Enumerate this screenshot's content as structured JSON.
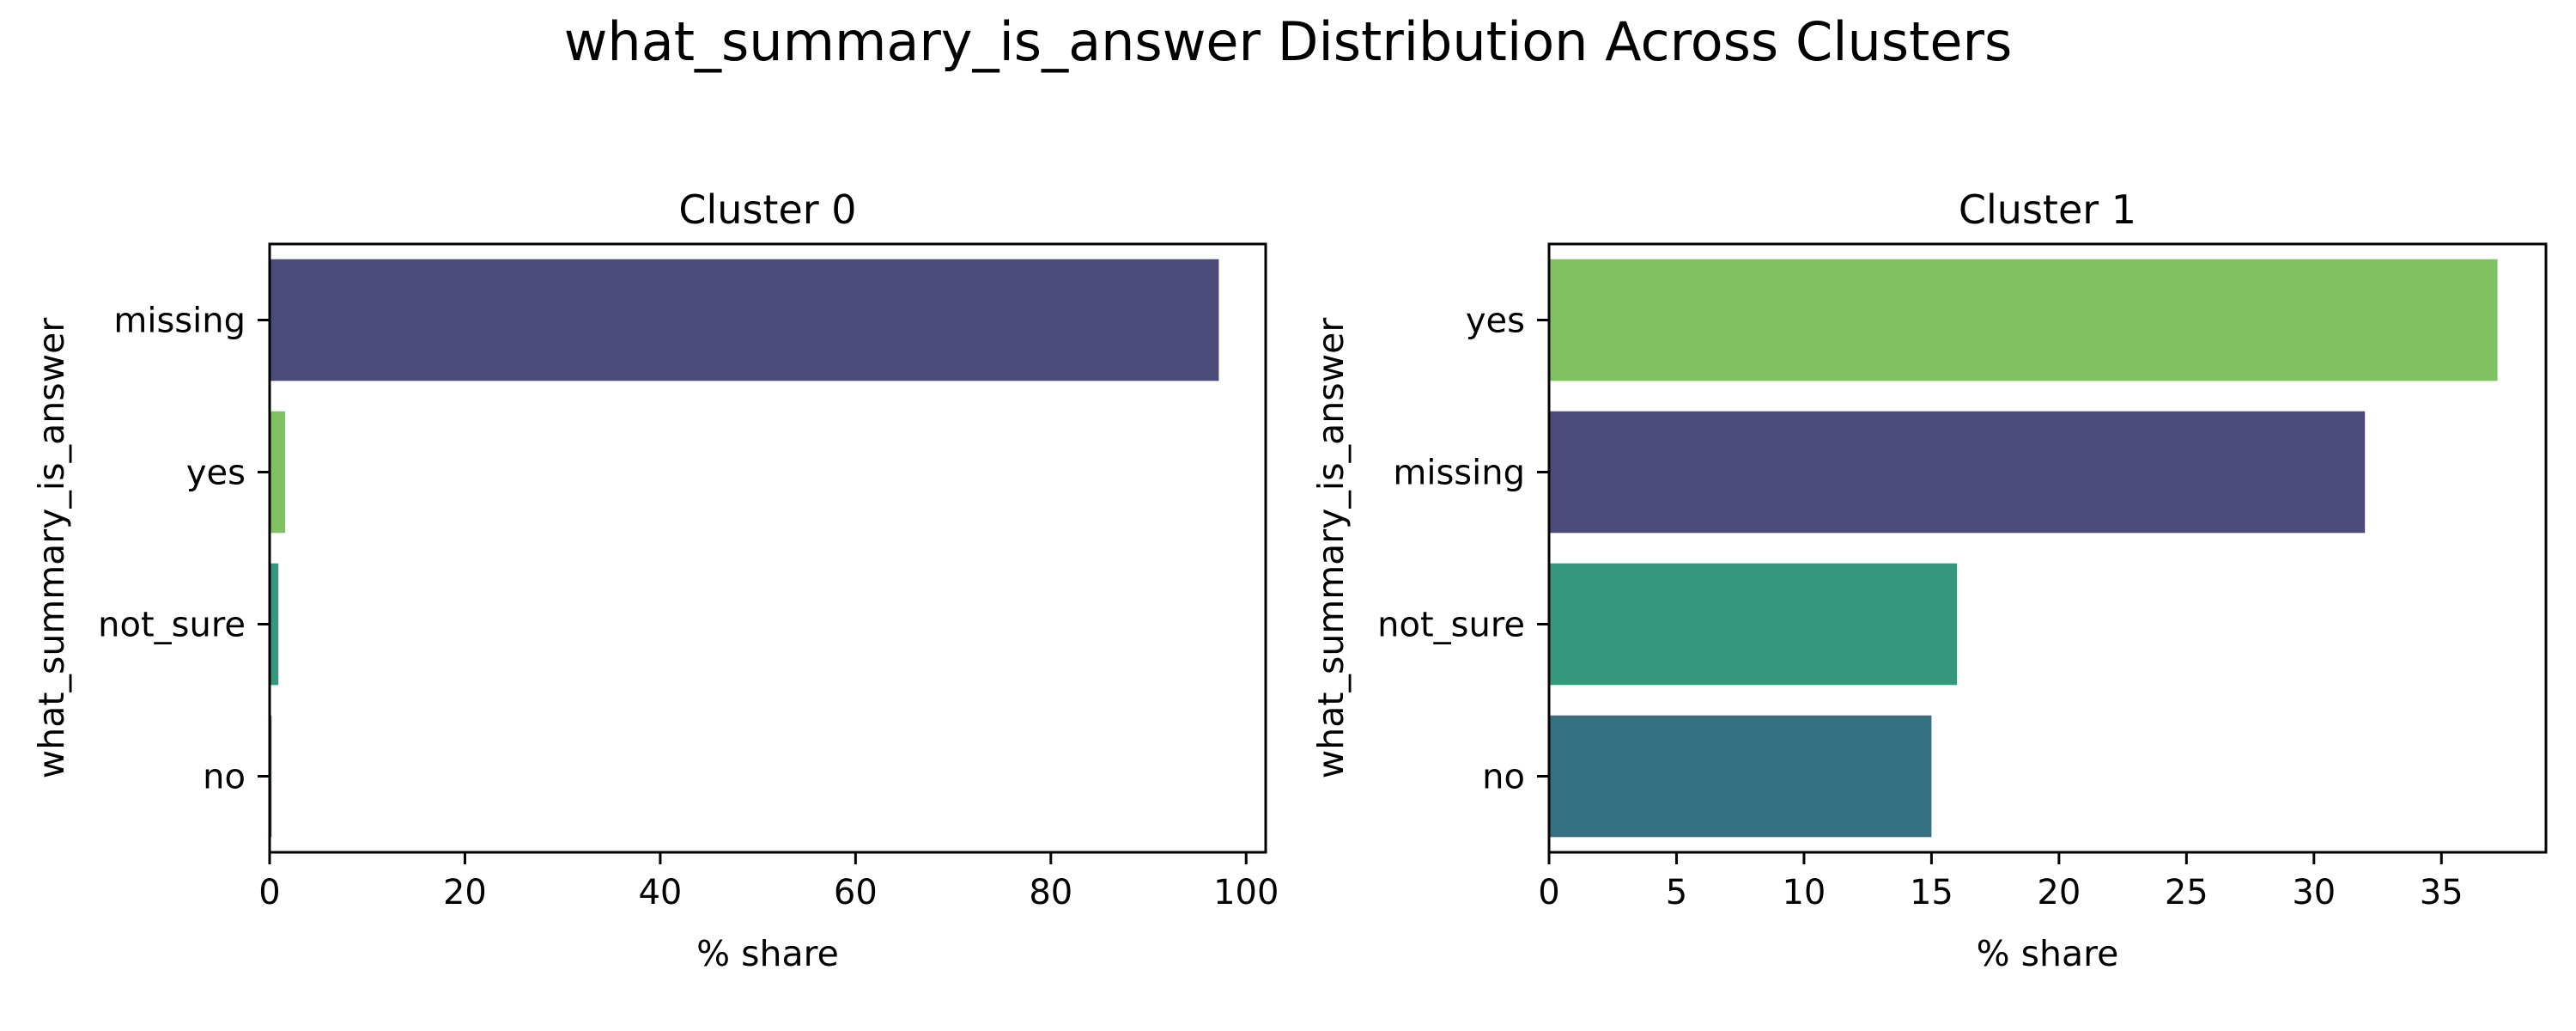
{
  "chart_data": {
    "title": "what_summary_is_answer Distribution Across Clusters",
    "panels": [
      {
        "type": "bar",
        "orientation": "horizontal",
        "title": "Cluster 0",
        "xlabel": "% share",
        "ylabel": "what_summary_is_answer",
        "xlim": [
          0,
          102
        ],
        "xticks": [
          0,
          20,
          40,
          60,
          80,
          100
        ],
        "categories": [
          "missing",
          "yes",
          "not_sure",
          "no"
        ],
        "values": [
          97.2,
          1.6,
          0.9,
          0.2
        ],
        "colors": [
          "#4b4b7b",
          "#80c262",
          "#35977c",
          "#367181"
        ]
      },
      {
        "type": "bar",
        "orientation": "horizontal",
        "title": "Cluster 1",
        "xlabel": "% share",
        "ylabel": "what_summary_is_answer",
        "xlim": [
          0,
          39.1
        ],
        "xticks": [
          0,
          5,
          10,
          15,
          20,
          25,
          30,
          35
        ],
        "categories": [
          "yes",
          "missing",
          "not_sure",
          "no"
        ],
        "values": [
          37.2,
          32,
          16,
          15
        ],
        "colors": [
          "#80c262",
          "#4b4b7b",
          "#35977c",
          "#367181"
        ]
      }
    ],
    "grid": false,
    "legend": "none"
  }
}
